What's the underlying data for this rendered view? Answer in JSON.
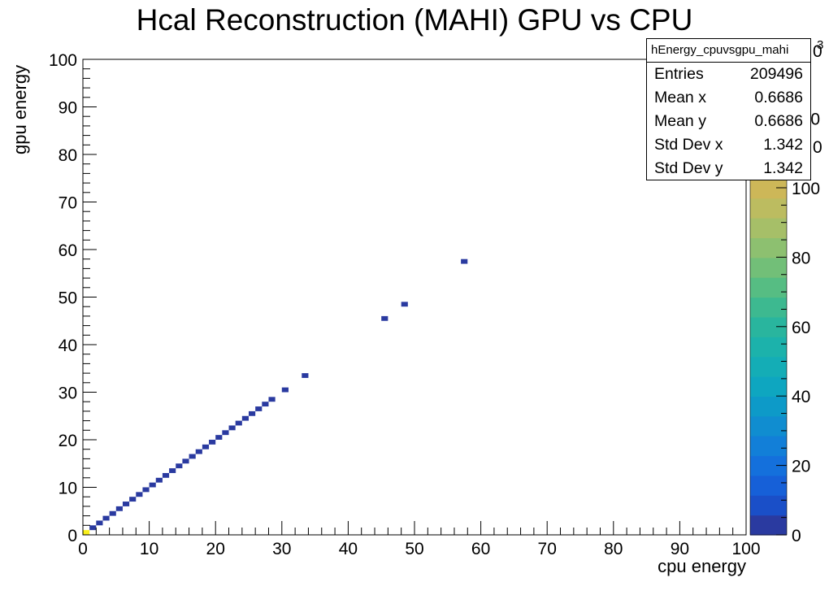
{
  "title": "Hcal Reconstruction (MAHI) GPU vs CPU",
  "stats": {
    "name": "hEnergy_cpuvsgpu_mahi",
    "rows": [
      {
        "label": "Entries",
        "value": "209496"
      },
      {
        "label": "Mean x",
        "value": "0.6686"
      },
      {
        "label": "Mean y",
        "value": "0.6686"
      },
      {
        "label": "Std Dev x",
        "value": "1.342"
      },
      {
        "label": "Std Dev y",
        "value": "1.342"
      }
    ]
  },
  "colorbar": {
    "exponent": "3",
    "max_labels": [
      "0",
      "0"
    ],
    "colors": [
      "#2a3aa0",
      "#1a4fc8",
      "#1660d8",
      "#1470dc",
      "#127fd8",
      "#108dd0",
      "#0d9ac8",
      "#0ea6c0",
      "#14adb6",
      "#1cb2ab",
      "#29b59e",
      "#3db990",
      "#56bd83",
      "#72bf78",
      "#8dc070",
      "#a6bf68",
      "#bcbc60",
      "#cdb758",
      "#dbb550",
      "#e6b848",
      "#f0c040",
      "#f8d030",
      "#fde020",
      "#f9f01a"
    ]
  },
  "chart_data": {
    "type": "heatmap",
    "title": "Hcal Reconstruction (MAHI) GPU vs CPU",
    "xlabel": "cpu energy",
    "ylabel": "gpu energy",
    "xlim": [
      0,
      100
    ],
    "ylim": [
      0,
      100
    ],
    "zlim": [
      0,
      137000
    ],
    "x_ticks": [
      0,
      10,
      20,
      30,
      40,
      50,
      60,
      70,
      80,
      90,
      100
    ],
    "y_ticks": [
      0,
      10,
      20,
      30,
      40,
      50,
      60,
      70,
      80,
      90,
      100
    ],
    "z_ticks": [
      0,
      20,
      40,
      60,
      80,
      100,
      120
    ],
    "bin_width": 1,
    "color_of_populated_bins": "#2a3aa0",
    "color_of_peak_bin": "#f9f01a",
    "peak_bin": {
      "x": 0,
      "y": 0
    },
    "bins": [
      {
        "x": 0,
        "y": 0,
        "peak": true
      },
      {
        "x": 1,
        "y": 1
      },
      {
        "x": 2,
        "y": 2
      },
      {
        "x": 3,
        "y": 3
      },
      {
        "x": 4,
        "y": 4
      },
      {
        "x": 5,
        "y": 5
      },
      {
        "x": 6,
        "y": 6
      },
      {
        "x": 7,
        "y": 7
      },
      {
        "x": 8,
        "y": 8
      },
      {
        "x": 9,
        "y": 9
      },
      {
        "x": 10,
        "y": 10
      },
      {
        "x": 11,
        "y": 11
      },
      {
        "x": 12,
        "y": 12
      },
      {
        "x": 13,
        "y": 13
      },
      {
        "x": 14,
        "y": 14
      },
      {
        "x": 15,
        "y": 15
      },
      {
        "x": 16,
        "y": 16
      },
      {
        "x": 17,
        "y": 17
      },
      {
        "x": 18,
        "y": 18
      },
      {
        "x": 19,
        "y": 19
      },
      {
        "x": 20,
        "y": 20
      },
      {
        "x": 21,
        "y": 21
      },
      {
        "x": 22,
        "y": 22
      },
      {
        "x": 23,
        "y": 23
      },
      {
        "x": 24,
        "y": 24
      },
      {
        "x": 25,
        "y": 25
      },
      {
        "x": 26,
        "y": 26
      },
      {
        "x": 27,
        "y": 27
      },
      {
        "x": 28,
        "y": 28
      },
      {
        "x": 30,
        "y": 30
      },
      {
        "x": 33,
        "y": 33
      },
      {
        "x": 45,
        "y": 45
      },
      {
        "x": 48,
        "y": 48
      },
      {
        "x": 57,
        "y": 57
      }
    ]
  }
}
